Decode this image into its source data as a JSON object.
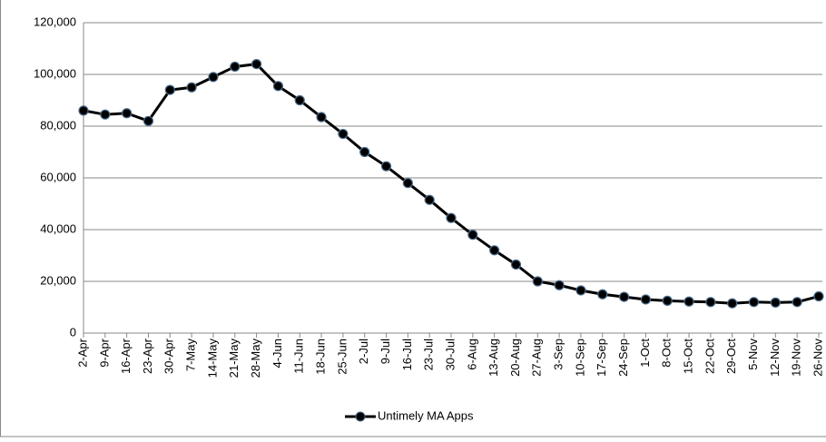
{
  "chart_data": {
    "type": "line",
    "categories": [
      "2-Apr",
      "9-Apr",
      "16-Apr",
      "23-Apr",
      "30-Apr",
      "7-May",
      "14-May",
      "21-May",
      "28-May",
      "4-Jun",
      "11-Jun",
      "18-Jun",
      "25-Jun",
      "2-Jul",
      "9-Jul",
      "16-Jul",
      "23-Jul",
      "30-Jul",
      "6-Aug",
      "13-Aug",
      "20-Aug",
      "27-Aug",
      "3-Sep",
      "10-Sep",
      "17-Sep",
      "24-Sep",
      "1-Oct",
      "8-Oct",
      "15-Oct",
      "22-Oct",
      "29-Oct",
      "5-Nov",
      "12-Nov",
      "19-Nov",
      "26-Nov"
    ],
    "series": [
      {
        "name": "Untimely MA Apps",
        "color": "#000000",
        "values": [
          86000,
          84500,
          85000,
          82000,
          94000,
          95000,
          99000,
          103000,
          104000,
          95500,
          90000,
          83500,
          77000,
          70000,
          64500,
          58000,
          51500,
          44500,
          38000,
          32000,
          26500,
          20000,
          18500,
          16500,
          15000,
          14000,
          13000,
          12500,
          12200,
          12000,
          11500,
          12000,
          11800,
          12000,
          14200
        ]
      }
    ],
    "ylim": [
      0,
      120000
    ],
    "yticks": [
      0,
      {
        "value": 20000,
        "label": "20,000"
      },
      {
        "value": 40000,
        "label": "40,000"
      },
      {
        "value": 60000,
        "label": "60,000"
      },
      {
        "value": 80000,
        "label": "80,000"
      },
      {
        "value": 100000,
        "label": "100,000"
      },
      {
        "value": 120000,
        "label": "120,000"
      }
    ],
    "grid": true,
    "legend": "bottom"
  }
}
